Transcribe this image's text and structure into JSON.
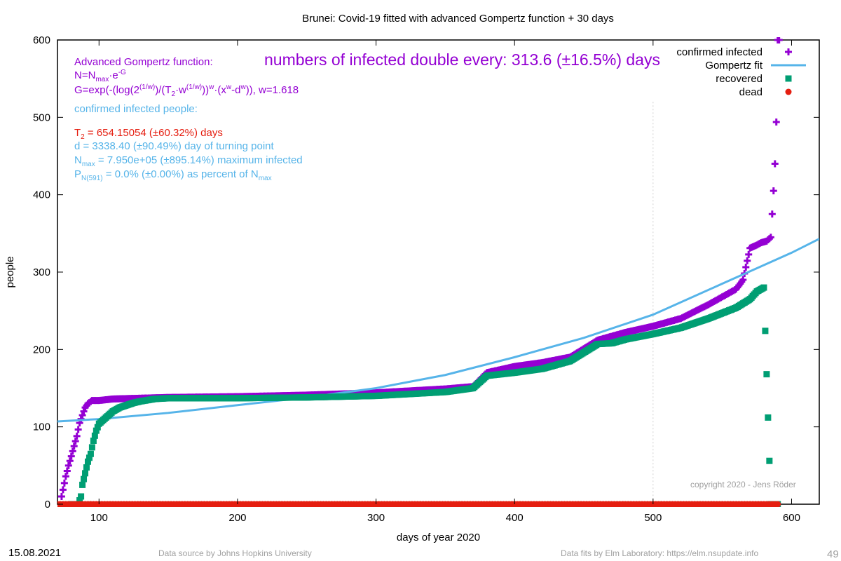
{
  "chart_data": {
    "type": "scatter",
    "title": "Brunei: Covid-19 fitted with advanced Gompertz function + 30 days",
    "xlabel": "days of year 2020",
    "ylabel": "people",
    "xlim": [
      70,
      620
    ],
    "ylim": [
      0,
      600
    ],
    "xticks": [
      100,
      200,
      300,
      400,
      500,
      600
    ],
    "yticks": [
      0,
      100,
      200,
      300,
      400,
      500,
      600
    ],
    "grid": "minimal",
    "legend_position": "top-right",
    "series": [
      {
        "name": "confirmed infected",
        "marker": "plus",
        "color": "#9400d3",
        "x": [
          73,
          76,
          78,
          80,
          82,
          84,
          86,
          88,
          90,
          92,
          95,
          100,
          110,
          130,
          150,
          200,
          250,
          300,
          350,
          370,
          380,
          400,
          420,
          440,
          460,
          480,
          500,
          520,
          540,
          560,
          565,
          570,
          575,
          578,
          582,
          585,
          587,
          588,
          589,
          590,
          591
        ],
        "y": [
          10,
          36,
          50,
          62,
          75,
          88,
          105,
          115,
          125,
          130,
          134,
          134,
          136,
          137,
          138,
          139,
          141,
          144,
          149,
          152,
          170,
          178,
          183,
          190,
          212,
          222,
          230,
          240,
          258,
          278,
          290,
          331,
          335,
          338,
          340,
          345,
          405,
          440,
          494,
          600,
          600
        ]
      },
      {
        "name": "Gompertz fit",
        "marker": "line",
        "color": "#56b4e9",
        "x": [
          70,
          100,
          150,
          200,
          250,
          300,
          350,
          400,
          450,
          500,
          550,
          600,
          620
        ],
        "y": [
          107,
          110,
          118,
          128,
          138,
          150,
          167,
          190,
          215,
          245,
          285,
          325,
          343
        ]
      },
      {
        "name": "recovered",
        "marker": "square",
        "color": "#009e73",
        "x": [
          80,
          85,
          87,
          88,
          90,
          92,
          94,
          96,
          98,
          100,
          105,
          110,
          115,
          120,
          125,
          130,
          140,
          150,
          200,
          250,
          300,
          350,
          370,
          380,
          400,
          420,
          440,
          460,
          470,
          480,
          500,
          520,
          540,
          560,
          570,
          575,
          580,
          585,
          590
        ],
        "y": [
          0,
          0,
          10,
          25,
          40,
          55,
          65,
          82,
          95,
          104,
          112,
          120,
          125,
          128,
          131,
          133,
          136,
          137,
          137,
          138,
          140,
          145,
          150,
          166,
          170,
          175,
          185,
          207,
          208,
          213,
          220,
          228,
          240,
          254,
          265,
          275,
          280,
          0,
          0
        ]
      },
      {
        "name": "dead",
        "marker": "circle",
        "color": "#e51e10",
        "x": [
          70,
          100,
          200,
          300,
          400,
          500,
          590
        ],
        "y": [
          0,
          0,
          0,
          0,
          0,
          0,
          0
        ]
      }
    ]
  },
  "annotations": {
    "doubling": "numbers of infected double every: 313.6 (±16.5%) days",
    "gompertz_title": "Advanced Gompertz function:",
    "gompertz_n": "N=N",
    "gompertz_n_sub": "max",
    "gompertz_n_rest": "·e",
    "gompertz_n_sup": "-G",
    "gompertz_g": " G=exp(-(log(2",
    "gompertz_g_sup1": "(1/w)",
    "gompertz_g_mid": ")/(T",
    "gompertz_g_sub": "2",
    "gompertz_g_mid2": "·w",
    "gompertz_g_sup2": "(1/w)",
    "gompertz_g_mid3": "))",
    "gompertz_g_sup3": "w",
    "gompertz_g_mid4": "·(x",
    "gompertz_g_sup4": "w",
    "gompertz_g_mid5": "-d",
    "gompertz_g_sup5": "w",
    "gompertz_g_end": ")), w=1.618",
    "confirmed_title": "confirmed infected people:",
    "t2_pre": "T",
    "t2_sub": "2",
    "t2_rest": " = 654.15054 (±60.32%) days",
    "d_line": "d = 3338.40 (±90.49%) day of turning point",
    "nmax_pre": "N",
    "nmax_sub": "max",
    "nmax_rest": " = 7.950e+05 (±895.14%) maximum infected",
    "p_pre": "P",
    "p_sub": "N(591)",
    "p_rest": " = 0.0% (±0.00%) as percent of N",
    "p_sub2": "max",
    "copyright": "copyright 2020 - Jens Röder"
  },
  "footer": {
    "date": "15.08.2021",
    "source": "Data source by Johns Hopkins University",
    "fits": "Data fits by Elm Laboratory: https://elm.nsupdate.info",
    "page": "49"
  }
}
